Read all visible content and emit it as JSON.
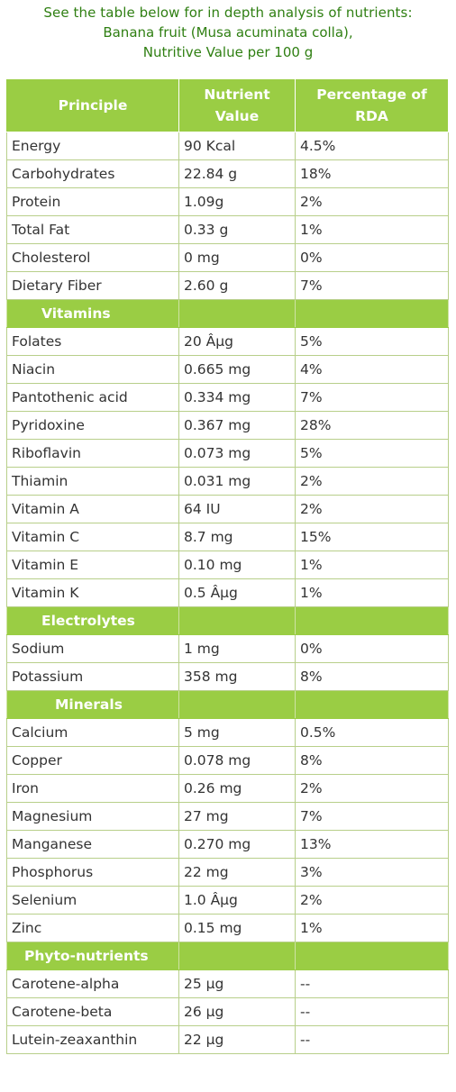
{
  "intro": {
    "line1": "See the table below for in depth analysis of nutrients:",
    "line2": "Banana fruit (Musa acuminata colla),",
    "line3": "Nutritive Value per 100 g"
  },
  "table": {
    "headers": {
      "principle": "Principle",
      "nutrient_value_1": "Nutrient",
      "nutrient_value_2": "Value",
      "rda_1": "Percentage of",
      "rda_2": "RDA"
    },
    "general": [
      {
        "name": "Energy",
        "value": "90 Kcal",
        "rda": "4.5%"
      },
      {
        "name": "Carbohydrates",
        "value": "22.84 g",
        "rda": "18%"
      },
      {
        "name": "Protein",
        "value": "1.09g",
        "rda": "2%"
      },
      {
        "name": "Total Fat",
        "value": "0.33 g",
        "rda": "1%"
      },
      {
        "name": "Cholesterol",
        "value": "0 mg",
        "rda": "0%"
      },
      {
        "name": "Dietary Fiber",
        "value": "2.60 g",
        "rda": "7%"
      }
    ],
    "vitamins_title": "Vitamins",
    "vitamins": [
      {
        "name": "Folates",
        "value": "20 Âµg",
        "rda": "5%"
      },
      {
        "name": "Niacin",
        "value": "0.665 mg",
        "rda": "4%"
      },
      {
        "name": "Pantothenic acid",
        "value": "0.334 mg",
        "rda": "7%"
      },
      {
        "name": "Pyridoxine",
        "value": "0.367 mg",
        "rda": "28%"
      },
      {
        "name": "Riboflavin",
        "value": "0.073 mg",
        "rda": "5%"
      },
      {
        "name": "Thiamin",
        "value": "0.031 mg",
        "rda": "2%"
      },
      {
        "name": "Vitamin A",
        "value": "64 IU",
        "rda": "2%"
      },
      {
        "name": "Vitamin C",
        "value": "8.7 mg",
        "rda": "15%"
      },
      {
        "name": "Vitamin E",
        "value": "0.10 mg",
        "rda": "1%"
      },
      {
        "name": "Vitamin K",
        "value": "0.5 Âµg",
        "rda": "1%"
      }
    ],
    "electrolytes_title": "Electrolytes",
    "electrolytes": [
      {
        "name": "Sodium",
        "value": "1 mg",
        "rda": "0%"
      },
      {
        "name": "Potassium",
        "value": "358 mg",
        "rda": "8%"
      }
    ],
    "minerals_title": "Minerals",
    "minerals": [
      {
        "name": "Calcium",
        "value": "5 mg",
        "rda": "0.5%"
      },
      {
        "name": "Copper",
        "value": "0.078 mg",
        "rda": "8%"
      },
      {
        "name": "Iron",
        "value": "0.26 mg",
        "rda": "2%"
      },
      {
        "name": "Magnesium",
        "value": "27 mg",
        "rda": "7%"
      },
      {
        "name": "Manganese",
        "value": "0.270 mg",
        "rda": "13%"
      },
      {
        "name": "Phosphorus",
        "value": "22 mg",
        "rda": "3%"
      },
      {
        "name": "Selenium",
        "value": "1.0 Âµg",
        "rda": "2%"
      },
      {
        "name": "Zinc",
        "value": "0.15 mg",
        "rda": "1%"
      }
    ],
    "phyto_title": "Phyto-nutrients",
    "phyto": [
      {
        "name": "Carotene-alpha",
        "value": "25 µg",
        "rda": "--"
      },
      {
        "name": "Carotene-beta",
        "value": "26 µg",
        "rda": "--"
      },
      {
        "name": "Lutein-zeaxanthin",
        "value": "22 µg",
        "rda": "--"
      }
    ]
  },
  "colors": {
    "intro_text": "#2f7f12",
    "header_bg": "#9acd44",
    "header_text": "#ffffff",
    "cell_border": "#b8cf8a",
    "cell_text": "#333333"
  }
}
